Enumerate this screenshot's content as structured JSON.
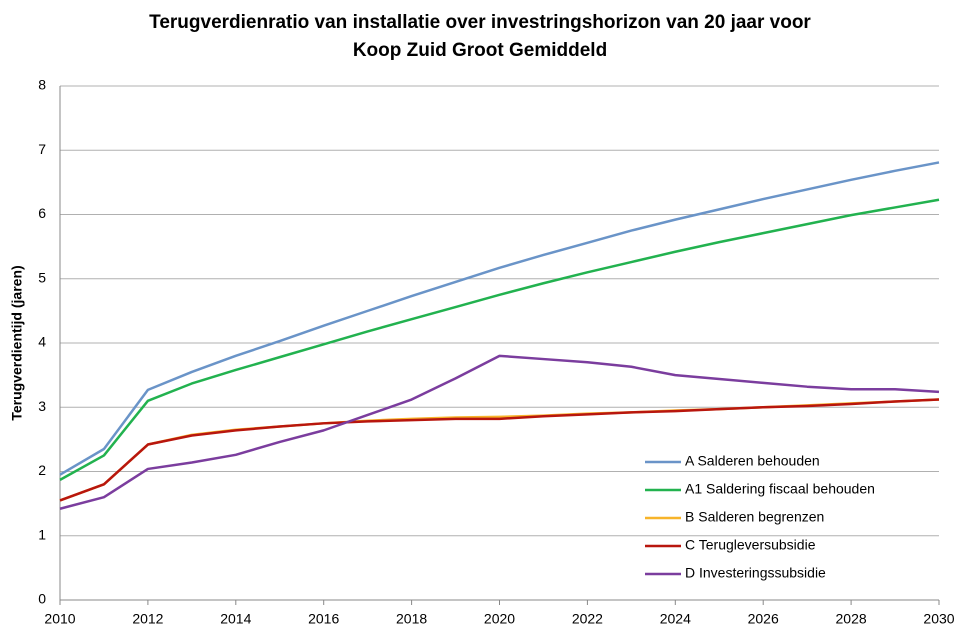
{
  "chart_data": {
    "type": "line",
    "title": [
      "Terugverdienratio van installatie over investringshorizon van 20 jaar voor",
      "Koop Zuid Groot Gemiddeld"
    ],
    "y_label": "Terugverdientijd (jaren)",
    "x": [
      2010,
      2011,
      2012,
      2013,
      2014,
      2015,
      2016,
      2017,
      2018,
      2019,
      2020,
      2021,
      2022,
      2023,
      2024,
      2025,
      2026,
      2027,
      2028,
      2029,
      2030
    ],
    "xlim": [
      2010,
      2030
    ],
    "xticks": [
      2010,
      2012,
      2014,
      2016,
      2018,
      2020,
      2022,
      2024,
      2026,
      2028,
      2030
    ],
    "ylim": [
      0,
      8
    ],
    "yticks": [
      0,
      1,
      2,
      3,
      4,
      5,
      6,
      7,
      8
    ],
    "grid": true,
    "legend": "lower right",
    "series": [
      {
        "name": "A Salderen behouden",
        "color": "#6a94c8",
        "values": [
          1.95,
          2.35,
          3.27,
          3.55,
          3.8,
          4.03,
          4.27,
          4.5,
          4.73,
          4.95,
          5.17,
          5.37,
          5.56,
          5.75,
          5.92,
          6.08,
          6.24,
          6.39,
          6.54,
          6.68,
          6.81
        ]
      },
      {
        "name": "A1 Saldering fiscaal behouden",
        "color": "#22b24f",
        "values": [
          1.87,
          2.25,
          3.1,
          3.37,
          3.58,
          3.78,
          3.98,
          4.18,
          4.37,
          4.56,
          4.75,
          4.93,
          5.1,
          5.26,
          5.42,
          5.57,
          5.71,
          5.85,
          5.99,
          6.11,
          6.23
        ]
      },
      {
        "name": "B Salderen begrenzen",
        "color": "#f7b42a",
        "values": [
          1.55,
          1.8,
          2.42,
          2.57,
          2.65,
          2.7,
          2.75,
          2.79,
          2.82,
          2.84,
          2.85,
          2.87,
          2.9,
          2.92,
          2.95,
          2.97,
          3.0,
          3.03,
          3.06,
          3.09,
          3.12
        ]
      },
      {
        "name": "C Terugleversubsidie",
        "color": "#b8160e",
        "values": [
          1.55,
          1.8,
          2.42,
          2.56,
          2.64,
          2.7,
          2.75,
          2.78,
          2.8,
          2.82,
          2.82,
          2.86,
          2.89,
          2.92,
          2.94,
          2.97,
          3.0,
          3.02,
          3.05,
          3.09,
          3.12
        ]
      },
      {
        "name": "D Investeringssubsidie",
        "color": "#7b3d9e",
        "values": [
          1.42,
          1.6,
          2.04,
          2.14,
          2.26,
          2.46,
          2.64,
          2.88,
          3.12,
          3.45,
          3.8,
          3.75,
          3.7,
          3.63,
          3.5,
          3.44,
          3.38,
          3.32,
          3.28,
          3.28,
          3.24
        ]
      }
    ]
  }
}
